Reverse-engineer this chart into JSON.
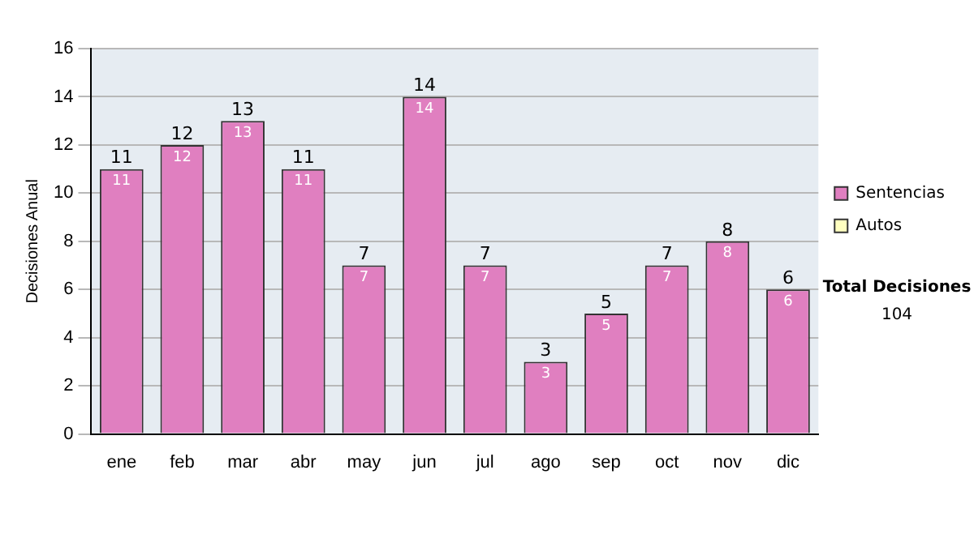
{
  "chart_data": {
    "type": "bar",
    "stacked": true,
    "ylabel": "Decisiones Anual",
    "categories": [
      "ene",
      "feb",
      "mar",
      "abr",
      "may",
      "jun",
      "jul",
      "ago",
      "sep",
      "oct",
      "nov",
      "dic"
    ],
    "series": [
      {
        "name": "Sentencias",
        "color": "#e07fc0",
        "values": [
          11,
          12,
          13,
          11,
          7,
          14,
          7,
          3,
          5,
          7,
          8,
          6
        ],
        "value_labels": [
          "11",
          "12",
          "13",
          "11",
          "7",
          "14",
          "7",
          "3",
          "5",
          "7",
          "8",
          "6"
        ]
      },
      {
        "name": "Autos",
        "color": "#ffffc0",
        "values": [
          0,
          0,
          0,
          0,
          0,
          0,
          0,
          0,
          0,
          0,
          0,
          0
        ]
      }
    ],
    "totals": [
      "11",
      "12",
      "13",
      "11",
      "7",
      "14",
      "7",
      "3",
      "5",
      "7",
      "8",
      "6"
    ],
    "ylim": [
      0,
      16
    ],
    "yticks": [
      0,
      2,
      4,
      6,
      8,
      10,
      12,
      14,
      16
    ],
    "grid": "y",
    "legend": "right",
    "annotations": [
      "Total Decisiones",
      "104"
    ]
  }
}
